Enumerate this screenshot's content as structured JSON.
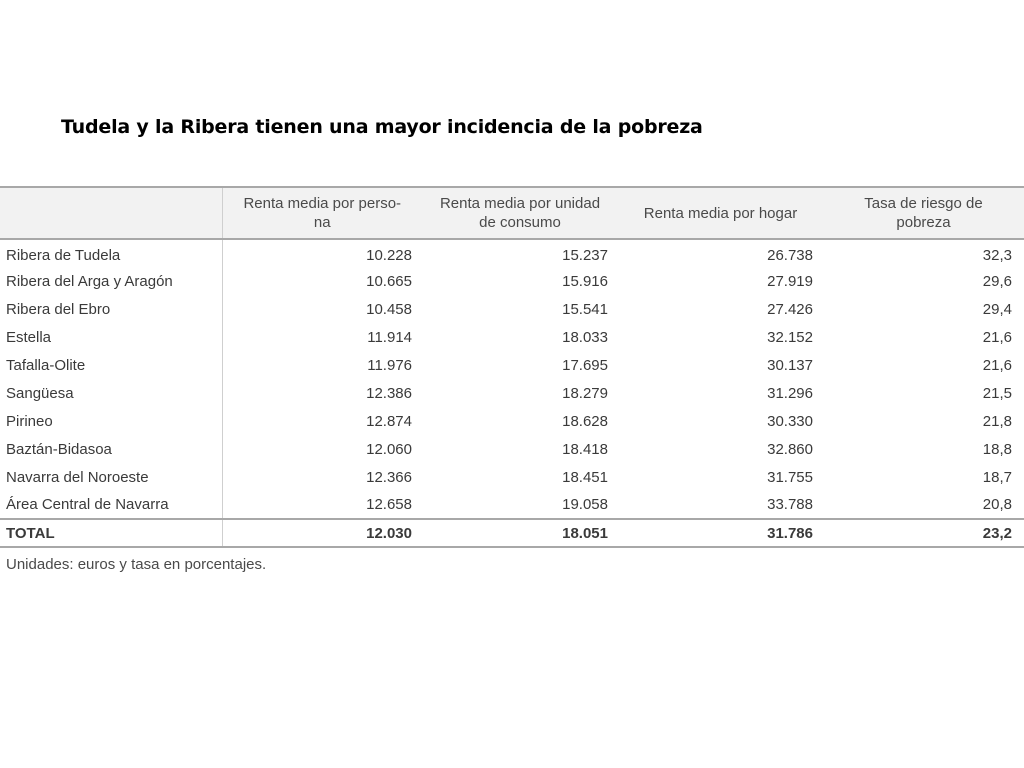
{
  "title": "Tudela y la Ribera tienen una mayor incidencia de la pobreza",
  "table": {
    "headers": [
      "",
      "Renta media por perso-\nna",
      "Renta media por unidad\nde consumo",
      "Renta media por hogar",
      "Tasa de riesgo de\npobreza"
    ],
    "rows": [
      {
        "name": "Ribera de Tudela",
        "persona": "10.228",
        "unidad": "15.237",
        "hogar": "26.738",
        "tasa": "32,3"
      },
      {
        "name": "Ribera del Arga y Aragón",
        "persona": "10.665",
        "unidad": "15.916",
        "hogar": "27.919",
        "tasa": "29,6"
      },
      {
        "name": "Ribera del Ebro",
        "persona": "10.458",
        "unidad": "15.541",
        "hogar": "27.426",
        "tasa": "29,4"
      },
      {
        "name": "Estella",
        "persona": "11.914",
        "unidad": "18.033",
        "hogar": "32.152",
        "tasa": "21,6"
      },
      {
        "name": "Tafalla-Olite",
        "persona": "11.976",
        "unidad": "17.695",
        "hogar": "30.137",
        "tasa": "21,6"
      },
      {
        "name": "Sangüesa",
        "persona": "12.386",
        "unidad": "18.279",
        "hogar": "31.296",
        "tasa": "21,5"
      },
      {
        "name": "Pirineo",
        "persona": "12.874",
        "unidad": "18.628",
        "hogar": "30.330",
        "tasa": "21,8"
      },
      {
        "name": "Baztán-Bidasoa",
        "persona": "12.060",
        "unidad": "18.418",
        "hogar": "32.860",
        "tasa": "18,8"
      },
      {
        "name": "Navarra del Noroeste",
        "persona": "12.366",
        "unidad": "18.451",
        "hogar": "31.755",
        "tasa": "18,7"
      },
      {
        "name": "Área Central de Navarra",
        "persona": "12.658",
        "unidad": "19.058",
        "hogar": "33.788",
        "tasa": "20,8"
      }
    ],
    "total": {
      "name": "TOTAL",
      "persona": "12.030",
      "unidad": "18.051",
      "hogar": "31.786",
      "tasa": "23,2"
    }
  },
  "footnote": "Unidades: euros y tasa en porcentajes."
}
